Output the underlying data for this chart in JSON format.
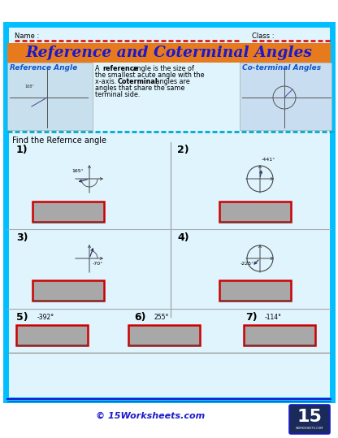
{
  "bg_color": "#ffffff",
  "outer_border_color": "#00bfff",
  "title_text": "Reference and Coterminal Angles",
  "title_bg_color": "#e87a1e",
  "title_text_color": "#1a1acc",
  "name_label": "Name :",
  "class_label": "Class :",
  "ref_label": "Reference Angle",
  "coterm_label": "Co-terminal Angles",
  "find_text": "Find the Refernce angle",
  "answer_box_color": "#a8a8a8",
  "answer_box_border": "#cc0000",
  "dashed_red": "#dd0000",
  "dashed_blue": "#00aacc",
  "footer_text": "© 15Worksheets.com",
  "footer_color": "#1a1acc",
  "logo_bg": "#1a2a5a"
}
